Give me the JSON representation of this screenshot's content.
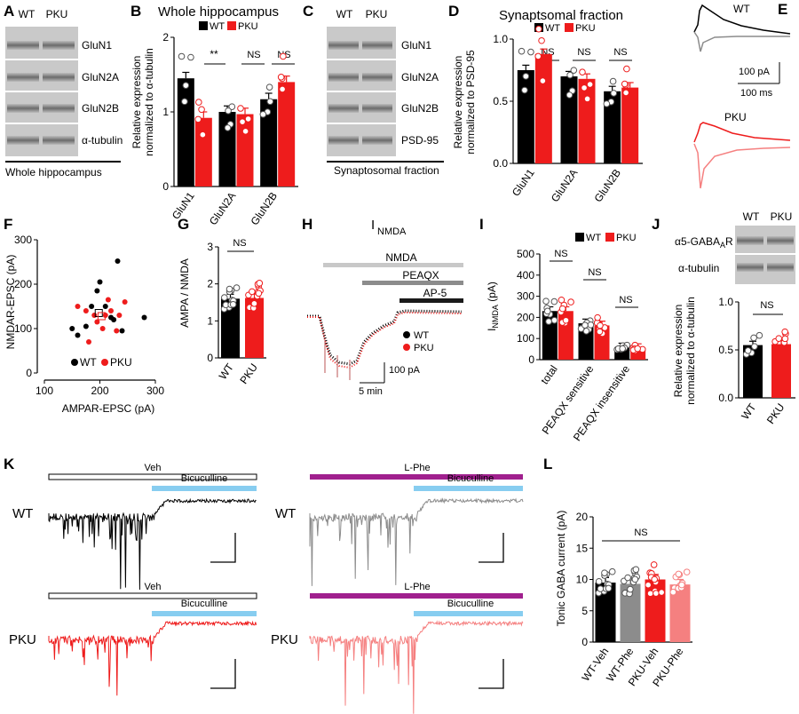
{
  "colors": {
    "wt": "#000000",
    "pku": "#ee1c1c",
    "phe_gray": "#8c8c8c",
    "pku_phe": "#f58080",
    "bicuculline_bar": "#87cdf0",
    "lphe_bar": "#a0208e",
    "nmda_bar": "#c8c8c8",
    "peaqx_bar": "#8c8c8c",
    "ap5_bar": "#1a1a1a"
  },
  "panels": {
    "A": {
      "letter": "A",
      "lanes": [
        "WT",
        "PKU"
      ],
      "bands": [
        "GluN1",
        "GluN2A",
        "GluN2B",
        "α-tubulin"
      ],
      "caption": "Whole hippocampus"
    },
    "B": {
      "letter": "B",
      "title": "Whole hippocampus",
      "legend": [
        "WT",
        "PKU"
      ],
      "ylabel1": "Relative expression",
      "ylabel2": "normalized to α-tubulin",
      "sig": [
        "**",
        "NS",
        "NS"
      ]
    },
    "C": {
      "letter": "C",
      "lanes": [
        "WT",
        "PKU"
      ],
      "bands": [
        "GluN1",
        "GluN2A",
        "GluN2B",
        "PSD-95"
      ],
      "caption": "Synaptosomal fraction"
    },
    "D": {
      "letter": "D",
      "title": "Synaptsomal fraction",
      "legend": [
        "WT",
        "PKU"
      ],
      "ylabel1": "Relative expression",
      "ylabel2": "normalized to PSD-95",
      "sig": [
        "NS",
        "NS",
        "NS"
      ]
    },
    "E": {
      "letter": "E",
      "wt": "WT",
      "pku": "PKU",
      "scale_y": "100 pA",
      "scale_x": "100 ms"
    },
    "F": {
      "letter": "F",
      "xlabel": "AMPAR-EPSC (pA)",
      "ylabel": "NMDAR-EPSC (pA)",
      "legend": [
        "WT",
        "PKU"
      ]
    },
    "G": {
      "letter": "G",
      "ylabel": "AMPA / NMDA",
      "sig": "NS"
    },
    "H": {
      "letter": "H",
      "title_main": "I",
      "title_sub": "NMDA",
      "bars": [
        "NMDA",
        "PEAQX",
        "AP-5"
      ],
      "legend": [
        "WT",
        "PKU"
      ],
      "scale_y": "100 pA",
      "scale_x": "5 min"
    },
    "I": {
      "letter": "I",
      "legend": [
        "WT",
        "PKU"
      ],
      "ylabel_main": "I",
      "ylabel_sub": "NMDA",
      "ylabel_unit": " (pA)",
      "sig": [
        "NS",
        "NS",
        "NS"
      ]
    },
    "J": {
      "letter": "J",
      "lanes": [
        "WT",
        "PKU"
      ],
      "band1_main": "α5-GABA",
      "band1_sub": "A",
      "band1_end": "R",
      "band2": "α-tubulin",
      "ylabel1": "Relative expression",
      "ylabel2": "normalized to α-tubulin",
      "sig": "NS"
    },
    "K": {
      "letter": "K",
      "veh": "Veh",
      "lphe": "L-Phe",
      "bicuculline": "Bicuculline",
      "row_wt": "WT",
      "row_pku": "PKU"
    },
    "L": {
      "letter": "L",
      "ylabel": "Tonic GABA current (pA)",
      "sig": "NS"
    }
  },
  "chart_data": [
    {
      "panel": "B",
      "type": "bar",
      "categories": [
        "GluN1",
        "GluN2A",
        "GluN2B"
      ],
      "ylim": [
        0,
        2
      ],
      "yticks": [
        0,
        1,
        2
      ],
      "series": [
        {
          "name": "WT",
          "values": [
            1.45,
            1.0,
            1.17
          ]
        },
        {
          "name": "PKU",
          "values": [
            0.92,
            0.97,
            1.4
          ]
        }
      ]
    },
    {
      "panel": "D",
      "type": "bar",
      "categories": [
        "GluN1",
        "GluN2A",
        "GluN2B"
      ],
      "ylim": [
        0,
        1
      ],
      "yticks": [
        0,
        0.5,
        1.0
      ],
      "series": [
        {
          "name": "WT",
          "values": [
            0.75,
            0.7,
            0.58
          ]
        },
        {
          "name": "PKU",
          "values": [
            0.88,
            0.68,
            0.61
          ]
        }
      ]
    },
    {
      "panel": "F",
      "type": "scatter",
      "xlim": [
        100,
        300
      ],
      "ylim": [
        0,
        300
      ],
      "xticks": [
        100,
        200,
        300
      ],
      "yticks": [
        0,
        100,
        200,
        300
      ],
      "series": [
        {
          "name": "WT",
          "points": [
            [
              160,
              85
            ],
            [
              175,
              105
            ],
            [
              185,
              150
            ],
            [
              195,
              185
            ],
            [
              200,
              205
            ],
            [
              210,
              150
            ],
            [
              220,
              125
            ],
            [
              225,
              120
            ],
            [
              232,
              252
            ],
            [
              240,
              95
            ],
            [
              280,
              125
            ],
            [
              150,
              100
            ]
          ]
        },
        {
          "name": "PKU",
          "points": [
            [
              160,
              150
            ],
            [
              175,
              140
            ],
            [
              190,
              130
            ],
            [
              195,
              115
            ],
            [
              205,
              100
            ],
            [
              210,
              130
            ],
            [
              215,
              165
            ],
            [
              220,
              140
            ],
            [
              230,
              95
            ],
            [
              235,
              130
            ],
            [
              245,
              160
            ],
            [
              180,
              70
            ]
          ]
        }
      ]
    },
    {
      "panel": "G",
      "type": "bar",
      "categories": [
        "WT",
        "PKU"
      ],
      "ylim": [
        0,
        3
      ],
      "yticks": [
        0,
        1,
        2,
        3
      ],
      "values": [
        1.6,
        1.62
      ]
    },
    {
      "panel": "I",
      "type": "bar",
      "categories": [
        "total",
        "PEAQX sensitive",
        "PEAQX insensitive"
      ],
      "ylim": [
        0,
        500
      ],
      "yticks": [
        0,
        100,
        200,
        300,
        400,
        500
      ],
      "series": [
        {
          "name": "WT",
          "values": [
            230,
            172,
            58
          ]
        },
        {
          "name": "PKU",
          "values": [
            230,
            162,
            55
          ]
        }
      ]
    },
    {
      "panel": "J",
      "type": "bar",
      "categories": [
        "WT",
        "PKU"
      ],
      "ylim": [
        0,
        1
      ],
      "yticks": [
        0,
        0.5,
        1.0
      ],
      "values": [
        0.55,
        0.56
      ]
    },
    {
      "panel": "L",
      "type": "bar",
      "categories": [
        "WT-Veh",
        "WT-Phe",
        "PKU-Veh",
        "PKU-Phe"
      ],
      "ylim": [
        0,
        20
      ],
      "yticks": [
        0,
        5,
        10,
        15,
        20
      ],
      "values": [
        9.5,
        9.3,
        10.0,
        9.2
      ]
    }
  ]
}
